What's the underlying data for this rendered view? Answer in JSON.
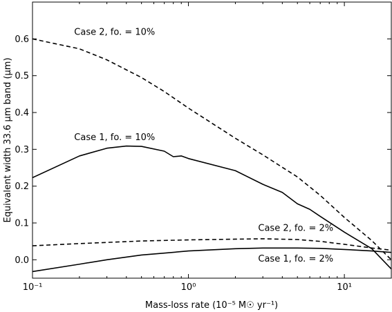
{
  "chart_data": {
    "type": "line",
    "xlabel": "Mass-loss rate (10⁻⁵ M☉ yr⁻¹)",
    "ylabel": "Equivalent width 33.6 μm band (μm)",
    "xscale": "log",
    "xlim": [
      0.1,
      20
    ],
    "ylim": [
      -0.05,
      0.7
    ],
    "grid": false,
    "x_tick_labels": [
      "10⁻¹",
      "10⁰",
      "10¹"
    ],
    "y_tick_labels": [
      "0.0",
      "0.1",
      "0.2",
      "0.3",
      "0.4",
      "0.5",
      "0.6"
    ],
    "series": [
      {
        "name": "Case 2, fo. = 10%",
        "style": "dashed",
        "x": [
          0.1,
          0.2,
          0.3,
          0.5,
          0.7,
          1.0,
          2.0,
          3.0,
          5.0,
          7.0,
          10.0,
          15.0,
          20.0
        ],
        "y": [
          0.6,
          0.573,
          0.543,
          0.495,
          0.457,
          0.412,
          0.33,
          0.285,
          0.225,
          0.175,
          0.115,
          0.052,
          0.0
        ]
      },
      {
        "name": "Case 1, fo. = 10%",
        "style": "solid",
        "x": [
          0.1,
          0.2,
          0.3,
          0.4,
          0.5,
          0.7,
          0.8,
          0.9,
          1.0,
          2.0,
          3.0,
          4.0,
          5.0,
          6.0,
          7.0,
          10.0,
          15.0,
          20.0
        ],
        "y": [
          0.223,
          0.282,
          0.303,
          0.309,
          0.308,
          0.295,
          0.28,
          0.282,
          0.275,
          0.242,
          0.205,
          0.183,
          0.152,
          0.137,
          0.118,
          0.075,
          0.03,
          -0.025
        ]
      },
      {
        "name": "Case 2, fo. = 2%",
        "style": "dashed",
        "x": [
          0.1,
          0.2,
          0.5,
          1.0,
          2.0,
          3.0,
          5.0,
          7.0,
          10.0,
          15.0,
          20.0
        ],
        "y": [
          0.038,
          0.044,
          0.051,
          0.054,
          0.056,
          0.057,
          0.055,
          0.05,
          0.042,
          0.032,
          0.026
        ]
      },
      {
        "name": "Case 1, fo. = 2%",
        "style": "solid",
        "x": [
          0.1,
          0.2,
          0.3,
          0.5,
          0.7,
          1.0,
          2.0,
          3.0,
          5.0,
          7.0,
          10.0,
          15.0,
          20.0
        ],
        "y": [
          -0.032,
          -0.012,
          0.0,
          0.013,
          0.018,
          0.024,
          0.03,
          0.032,
          0.032,
          0.031,
          0.028,
          0.024,
          0.02
        ]
      }
    ],
    "annotations": [
      {
        "text": "Case 2, fo. = 10%",
        "x": 0.185,
        "y": 0.611
      },
      {
        "text": "Case 1, fo. = 10%",
        "x": 0.185,
        "y": 0.325
      },
      {
        "text": "Case 2, fo. = 2%",
        "x": 2.8,
        "y": 0.078
      },
      {
        "text": "Case 1, fo. = 2%",
        "x": 2.8,
        "y": -0.005
      }
    ]
  }
}
